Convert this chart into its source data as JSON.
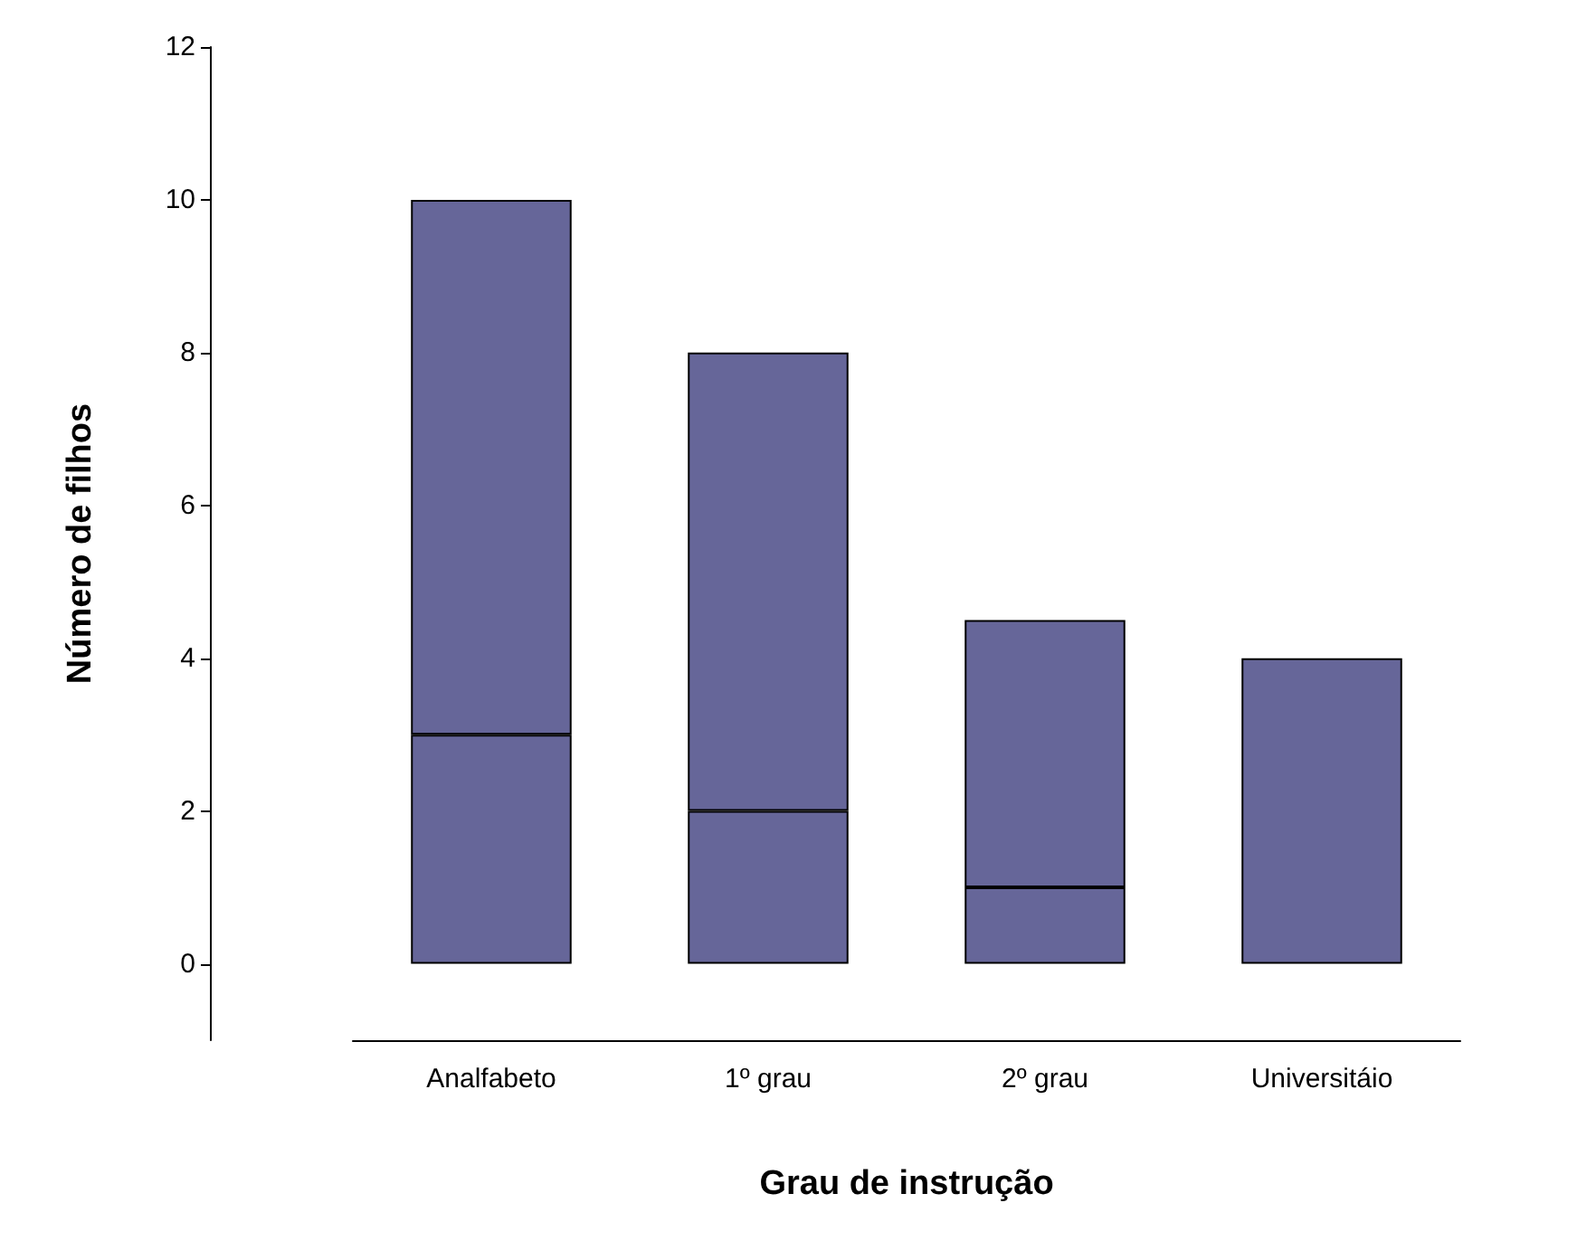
{
  "chart_data": {
    "type": "bar",
    "stacked": true,
    "xlabel": "Grau de instrução",
    "ylabel": "Número de filhos",
    "categories": [
      "Analfabeto",
      "1º grau",
      "2º grau",
      "Universitáio"
    ],
    "series": [
      {
        "color": "#666699",
        "values": [
          3,
          2,
          1,
          0
        ]
      },
      {
        "color": "#666699",
        "values": [
          7,
          6,
          3.5,
          4
        ]
      }
    ],
    "ylim": [
      -1,
      12
    ],
    "yticks": [
      0,
      2,
      4,
      6,
      8,
      10,
      12
    ],
    "grid": false
  }
}
